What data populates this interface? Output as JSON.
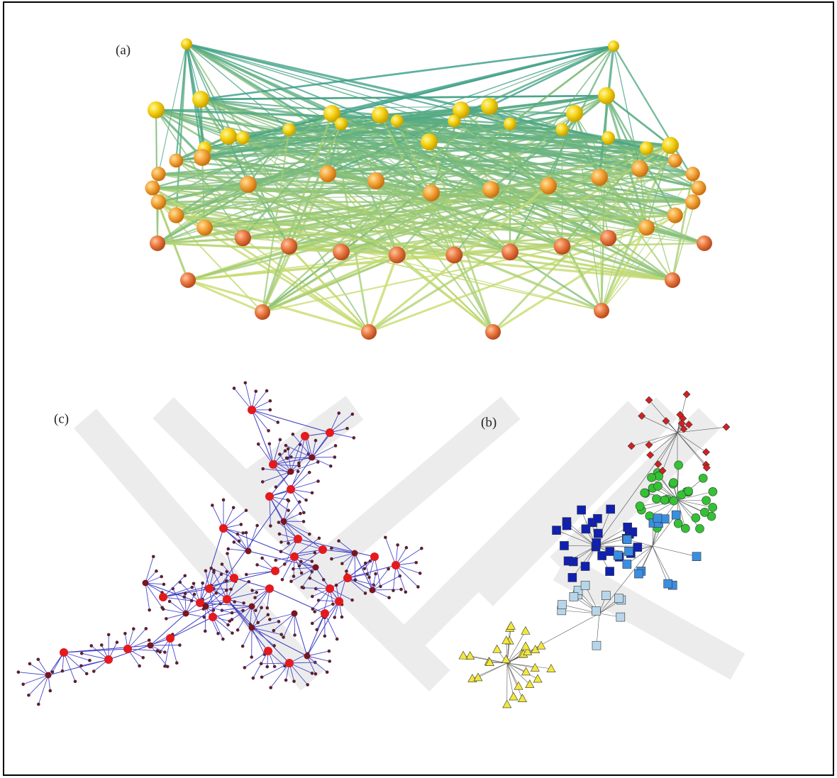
{
  "panels": [
    {
      "label": "(a)"
    },
    {
      "label": "(c)"
    },
    {
      "label": "(b)"
    }
  ]
}
